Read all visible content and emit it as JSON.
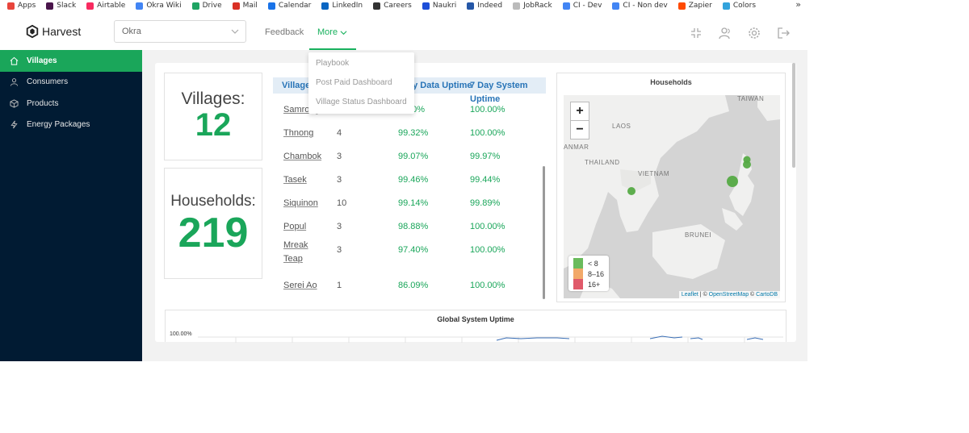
{
  "bookmarks": {
    "items": [
      {
        "label": "Apps",
        "icon": "apps-grid-icon",
        "color": "#e8453c"
      },
      {
        "label": "Slack",
        "icon": "slack-icon",
        "color": "#4a154b"
      },
      {
        "label": "Airtable",
        "icon": "airtable-icon",
        "color": "#f82b60"
      },
      {
        "label": "Okra Wiki",
        "icon": "google-icon",
        "color": "#4285f4"
      },
      {
        "label": "Drive",
        "icon": "drive-icon",
        "color": "#1fa463"
      },
      {
        "label": "Mail",
        "icon": "gmail-icon",
        "color": "#d93025"
      },
      {
        "label": "Calendar",
        "icon": "calendar-icon",
        "color": "#1a73e8"
      },
      {
        "label": "LinkedIn",
        "icon": "linkedin-icon",
        "color": "#0a66c2"
      },
      {
        "label": "Careers",
        "icon": "careers-icon",
        "color": "#333333"
      },
      {
        "label": "Naukri",
        "icon": "naukri-icon",
        "color": "#1d4ed8"
      },
      {
        "label": "Indeed",
        "icon": "indeed-icon",
        "color": "#2557a7"
      },
      {
        "label": "JobRack",
        "icon": "jobrack-icon",
        "color": "#bbbbbb"
      },
      {
        "label": "CI - Dev",
        "icon": "docs-icon",
        "color": "#4285f4"
      },
      {
        "label": "CI - Non dev",
        "icon": "docs-icon",
        "color": "#4285f4"
      },
      {
        "label": "Zapier",
        "icon": "zapier-icon",
        "color": "#ff4a00"
      },
      {
        "label": "Colors",
        "icon": "colors-icon",
        "color": "#33a3dc"
      }
    ],
    "more": "»"
  },
  "app": {
    "brand": "Harvest",
    "org_select": "Okra",
    "nav": {
      "feedback": "Feedback",
      "more": "More"
    },
    "dropdown": [
      "Playbook",
      "Post Paid Dashboard",
      "Village Status Dashboard"
    ],
    "accent": "#1aa65a"
  },
  "sidebar": {
    "items": [
      {
        "label": "Villages",
        "icon": "home-icon",
        "active": true
      },
      {
        "label": "Consumers",
        "icon": "user-icon",
        "active": false
      },
      {
        "label": "Products",
        "icon": "box-icon",
        "active": false
      },
      {
        "label": "Energy Packages",
        "icon": "lightning-icon",
        "active": false
      }
    ]
  },
  "kpis": {
    "villages_label": "Villages:",
    "villages_value": "12",
    "households_label": "Households:",
    "households_value": "219"
  },
  "table": {
    "headers": {
      "village": "Village",
      "data_uptime": "ay Data Uptime",
      "sys_uptime_1": "7 Day System",
      "sys_uptime_2": "Uptime"
    },
    "rows": [
      {
        "name": "Samrong",
        "n": "",
        "data": "…70%",
        "sys": "100.00%"
      },
      {
        "name": "Thnong",
        "n": "4",
        "data": "99.32%",
        "sys": "100.00%"
      },
      {
        "name": "Chambok",
        "n": "3",
        "data": "99.07%",
        "sys": "99.97%"
      },
      {
        "name": "Tasek",
        "n": "3",
        "data": "99.46%",
        "sys": "99.44%"
      },
      {
        "name": "Siquinon",
        "n": "10",
        "data": "99.14%",
        "sys": "99.89%"
      },
      {
        "name": "Popul",
        "n": "3",
        "data": "98.88%",
        "sys": "100.00%"
      },
      {
        "name": "Mreak Teap",
        "n": "3",
        "data": "97.40%",
        "sys": "100.00%"
      },
      {
        "name": "Serei Ao",
        "n": "1",
        "data": "86.09%",
        "sys": "100.00%"
      }
    ]
  },
  "map": {
    "title": "Households",
    "zoom_in": "+",
    "zoom_out": "−",
    "labels": [
      "TAIWAN",
      "LAOS",
      "ANMAR",
      "THAILAND",
      "VIETNAM",
      "BRUNEI"
    ],
    "legend": [
      {
        "label": "< 8",
        "color": "#6abb5c"
      },
      {
        "label": "8–16",
        "color": "#f2a969"
      },
      {
        "label": "16+",
        "color": "#e05a6a"
      }
    ],
    "attribution": {
      "leaflet": "Leaflet",
      "sep": " | © ",
      "osm": "OpenStreetMap",
      "sep2": " © ",
      "carto": "CartoDB"
    }
  },
  "uptime": {
    "title": "Global System Uptime",
    "y_top": "100.00%"
  }
}
